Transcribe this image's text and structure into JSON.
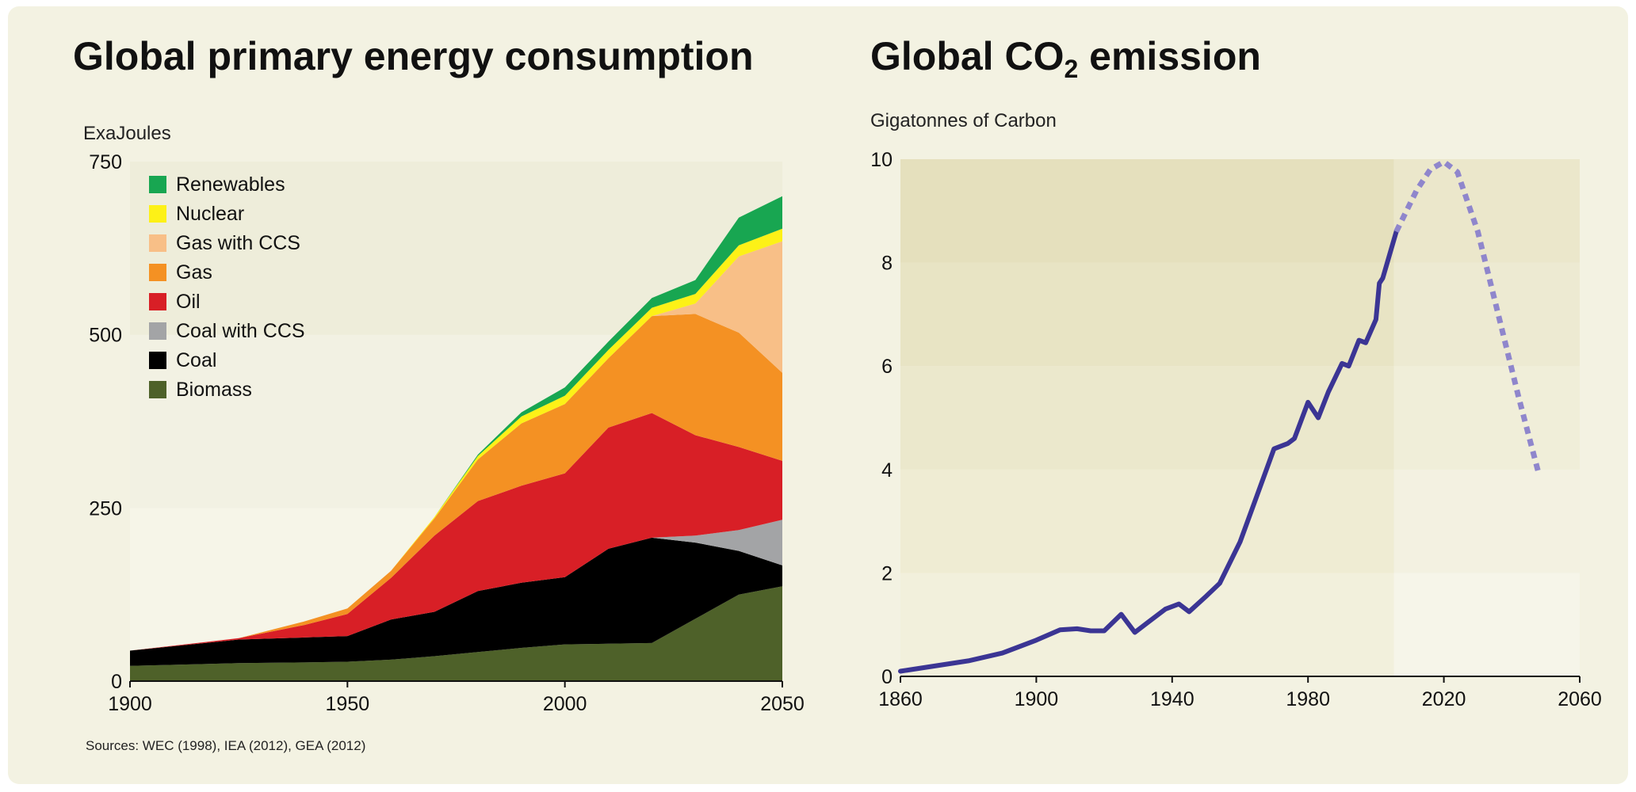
{
  "chart_data": [
    {
      "type": "area",
      "title": "Global primary energy consumption",
      "ylabel": "ExaJoules",
      "xlabel": "",
      "xlim": [
        1900,
        2050
      ],
      "ylim": [
        0,
        750
      ],
      "x_ticks": [
        1900,
        1950,
        2000,
        2050
      ],
      "y_ticks": [
        0,
        250,
        500,
        750
      ],
      "stacked": true,
      "legend_position": "top-left",
      "source": "Sources: WEC (1998), IEA (2012), GEA (2012)",
      "x": [
        1900,
        1925,
        1940,
        1950,
        1960,
        1970,
        1980,
        1990,
        2000,
        2010,
        2020,
        2030,
        2040,
        2050
      ],
      "series": [
        {
          "name": "Biomass",
          "color": "#4e6129",
          "values": [
            22,
            26,
            27,
            28,
            31,
            36,
            42,
            48,
            53,
            54,
            55,
            90,
            125,
            137
          ]
        },
        {
          "name": "Coal",
          "color": "#000000",
          "values": [
            22,
            34,
            36,
            37,
            58,
            64,
            88,
            94,
            97,
            137,
            152,
            110,
            63,
            30
          ]
        },
        {
          "name": "Coal with CCS",
          "color": "#a3a4a6",
          "values": [
            0,
            0,
            0,
            0,
            0,
            0,
            0,
            0,
            0,
            0,
            0,
            10,
            30,
            66
          ]
        },
        {
          "name": "Oil",
          "color": "#d81f26",
          "values": [
            0,
            2,
            18,
            32,
            60,
            110,
            130,
            140,
            150,
            175,
            180,
            145,
            120,
            85
          ]
        },
        {
          "name": "Gas",
          "color": "#f49123",
          "values": [
            0,
            0,
            5,
            8,
            10,
            25,
            60,
            90,
            100,
            100,
            140,
            175,
            165,
            127
          ]
        },
        {
          "name": "Gas with CCS",
          "color": "#f8bf87",
          "values": [
            0,
            0,
            0,
            0,
            0,
            0,
            0,
            0,
            0,
            0,
            0,
            15,
            110,
            190
          ]
        },
        {
          "name": "Nuclear",
          "color": "#fdf117",
          "values": [
            0,
            0,
            0,
            0,
            0,
            2,
            5,
            10,
            12,
            12,
            12,
            14,
            16,
            18
          ]
        },
        {
          "name": "Renewables",
          "color": "#18a651",
          "values": [
            0,
            0,
            0,
            0,
            0,
            0,
            2,
            6,
            12,
            12,
            14,
            20,
            40,
            47
          ]
        }
      ]
    },
    {
      "type": "line",
      "title_text": "Global CO",
      "title_subscript": "2",
      "title_suffix": " emission",
      "ylabel": "Gigatonnes of Carbon",
      "xlabel": "",
      "xlim": [
        1860,
        2060
      ],
      "ylim": [
        0,
        10
      ],
      "x_ticks": [
        1860,
        1900,
        1940,
        1980,
        2020,
        2060
      ],
      "y_ticks": [
        0,
        2,
        4,
        6,
        8,
        10
      ],
      "grid": "alternating horizontal bands",
      "series": [
        {
          "name": "historical",
          "style": "solid",
          "color": "#3b3594",
          "x": [
            1860,
            1880,
            1890,
            1900,
            1907,
            1912,
            1916,
            1920,
            1925,
            1929,
            1933,
            1938,
            1942,
            1945,
            1950,
            1954,
            1960,
            1965,
            1970,
            1974,
            1976,
            1980,
            1983,
            1986,
            1990,
            1992,
            1995,
            1997,
            2000,
            2001,
            2002,
            2006
          ],
          "y": [
            0.1,
            0.3,
            0.45,
            0.7,
            0.9,
            0.92,
            0.88,
            0.88,
            1.2,
            0.85,
            1.05,
            1.3,
            1.4,
            1.25,
            1.55,
            1.8,
            2.6,
            3.5,
            4.4,
            4.5,
            4.6,
            5.3,
            5.0,
            5.5,
            6.05,
            6.0,
            6.5,
            6.45,
            6.9,
            7.6,
            7.7,
            8.6
          ]
        },
        {
          "name": "projection",
          "style": "dashed",
          "color": "#8f86cc",
          "x": [
            2006,
            2012,
            2016,
            2020,
            2024,
            2030,
            2036,
            2042,
            2048
          ],
          "y": [
            8.6,
            9.4,
            9.8,
            9.95,
            9.75,
            8.6,
            7.0,
            5.4,
            3.9
          ]
        }
      ]
    }
  ]
}
